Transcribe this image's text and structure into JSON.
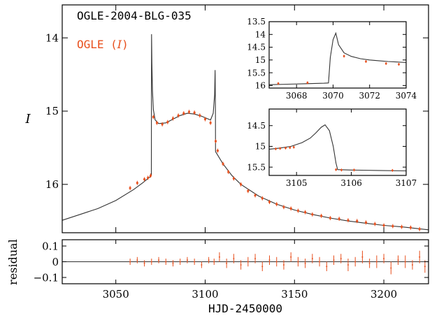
{
  "chart_data": [
    {
      "type": "scatter",
      "panel": "main",
      "event_label": "OGLE-2004-BLG-035",
      "legend_label": "OGLE (",
      "legend_band": "I",
      "legend_close": ")",
      "ylabel": "I",
      "xlabel": "HJD-2450000",
      "xlim": [
        3020,
        3225
      ],
      "ylim": [
        16.66,
        13.55
      ],
      "y_inverted": true,
      "xticks": [
        3050,
        3100,
        3150,
        3200
      ],
      "yticks": [
        14,
        15,
        16
      ],
      "series": [
        {
          "name": "OGLE (I)",
          "color": "#e8501e",
          "x": [
            3058,
            3062,
            3066,
            3068,
            3069.5,
            3071,
            3073,
            3076,
            3079,
            3082,
            3085,
            3088,
            3091,
            3094,
            3097,
            3100,
            3103,
            3105.9,
            3107,
            3110,
            3113,
            3116,
            3120,
            3124,
            3128,
            3132,
            3136,
            3140,
            3144,
            3148,
            3152,
            3156,
            3160,
            3165,
            3170,
            3175,
            3180,
            3185,
            3190,
            3195,
            3200,
            3205,
            3210,
            3215,
            3220
          ],
          "y": [
            16.05,
            15.98,
            15.93,
            15.91,
            15.88,
            15.08,
            15.16,
            15.18,
            15.15,
            15.1,
            15.06,
            15.03,
            15.01,
            15.02,
            15.06,
            15.11,
            15.16,
            15.41,
            15.54,
            15.72,
            15.83,
            15.92,
            16.0,
            16.09,
            16.15,
            16.19,
            16.24,
            16.27,
            16.31,
            16.33,
            16.36,
            16.38,
            16.41,
            16.43,
            16.46,
            16.47,
            16.49,
            16.5,
            16.52,
            16.54,
            16.56,
            16.57,
            16.58,
            16.59,
            16.61
          ]
        }
      ],
      "model": {
        "name": "model",
        "color": "#333333",
        "x": [
          3020,
          3030,
          3040,
          3050,
          3060,
          3065,
          3068,
          3069.5,
          3069.9,
          3070.0,
          3070.2,
          3070.5,
          3071,
          3072,
          3074,
          3078,
          3082,
          3086,
          3090,
          3094,
          3098,
          3101,
          3103,
          3104.5,
          3105.3,
          3105.55,
          3105.75,
          3105.78,
          3106,
          3107,
          3110,
          3115,
          3120,
          3130,
          3140,
          3150,
          3160,
          3170,
          3180,
          3190,
          3200,
          3210,
          3225
        ],
        "y": [
          16.49,
          16.41,
          16.33,
          16.22,
          16.07,
          15.98,
          15.92,
          15.89,
          15.88,
          13.95,
          14.35,
          14.72,
          14.98,
          15.12,
          15.17,
          15.16,
          15.11,
          15.06,
          15.03,
          15.04,
          15.07,
          15.1,
          15.12,
          15.03,
          14.78,
          14.44,
          15.0,
          15.55,
          15.56,
          15.6,
          15.72,
          15.88,
          16.0,
          16.16,
          16.27,
          16.35,
          16.41,
          16.46,
          16.5,
          16.53,
          16.56,
          16.58,
          16.62
        ]
      }
    },
    {
      "type": "scatter",
      "panel": "residual",
      "ylabel": "residual",
      "xlabel": "HJD-2450000",
      "xlim": [
        3020,
        3225
      ],
      "ylim": [
        -0.14,
        0.14
      ],
      "xticks": [
        3050,
        3100,
        3150,
        3200
      ],
      "yticks": [
        0.1,
        0,
        -0.1
      ],
      "ytick_labels": [
        "0.1",
        "0",
        "−0.1"
      ],
      "series": [
        {
          "name": "OGLE (I) residual",
          "color": "#e8501e",
          "x": [
            3058,
            3062,
            3066,
            3070,
            3074,
            3078,
            3082,
            3086,
            3090,
            3094,
            3098,
            3102,
            3105,
            3108,
            3112,
            3116,
            3120,
            3124,
            3128,
            3132,
            3136,
            3140,
            3144,
            3148,
            3152,
            3156,
            3160,
            3164,
            3168,
            3172,
            3176,
            3180,
            3184,
            3188,
            3192,
            3196,
            3200,
            3204,
            3208,
            3212,
            3216,
            3220,
            3223
          ],
          "y": [
            0.0,
            0.01,
            -0.01,
            0.0,
            0.01,
            0.0,
            -0.01,
            0.0,
            0.01,
            0.0,
            -0.02,
            0.01,
            0.0,
            0.03,
            -0.01,
            0.02,
            -0.02,
            0.0,
            0.02,
            -0.03,
            0.01,
            0.0,
            -0.02,
            0.03,
            0.0,
            -0.01,
            0.02,
            0.0,
            -0.03,
            0.01,
            0.02,
            -0.02,
            0.0,
            0.03,
            -0.01,
            0.0,
            0.02,
            -0.04,
            0.01,
            0.0,
            -0.02,
            0.03,
            -0.03
          ],
          "err": [
            0.02,
            0.02,
            0.02,
            0.02,
            0.02,
            0.02,
            0.02,
            0.02,
            0.02,
            0.02,
            0.02,
            0.02,
            0.02,
            0.03,
            0.03,
            0.03,
            0.03,
            0.03,
            0.03,
            0.03,
            0.03,
            0.03,
            0.03,
            0.03,
            0.03,
            0.03,
            0.03,
            0.03,
            0.03,
            0.03,
            0.03,
            0.04,
            0.03,
            0.04,
            0.03,
            0.04,
            0.03,
            0.04,
            0.03,
            0.04,
            0.03,
            0.04,
            0.04
          ]
        }
      ]
    },
    {
      "type": "scatter",
      "panel": "inset-1",
      "xlim": [
        3066.5,
        3074
      ],
      "ylim": [
        16.1,
        13.5
      ],
      "y_inverted": true,
      "xticks": [
        3068,
        3070,
        3072,
        3074
      ],
      "yticks": [
        13.5,
        14,
        14.5,
        15,
        15.5,
        16
      ],
      "series": [
        {
          "name": "OGLE (I)",
          "color": "#e8501e",
          "x": [
            3067.0,
            3068.6,
            3070.6,
            3071.8,
            3072.9,
            3073.6
          ],
          "y": [
            15.92,
            15.89,
            14.85,
            15.06,
            15.14,
            15.17
          ]
        }
      ],
      "model": {
        "name": "model",
        "color": "#333333",
        "x": [
          3066.5,
          3067.5,
          3068.5,
          3069.5,
          3069.75,
          3069.85,
          3070.0,
          3070.15,
          3070.3,
          3070.6,
          3071.0,
          3071.5,
          3072.0,
          3072.5,
          3073.0,
          3073.5,
          3074.0
        ],
        "y": [
          15.97,
          15.95,
          15.93,
          15.91,
          15.9,
          14.9,
          14.2,
          13.95,
          14.4,
          14.72,
          14.86,
          14.95,
          15.0,
          15.03,
          15.06,
          15.08,
          15.1
        ]
      }
    },
    {
      "type": "scatter",
      "panel": "inset-2",
      "xlim": [
        3104.5,
        3107
      ],
      "ylim": [
        15.7,
        14.1
      ],
      "y_inverted": true,
      "xticks": [
        3105,
        3106,
        3107
      ],
      "yticks": [
        14.5,
        15,
        15.5
      ],
      "series": [
        {
          "name": "OGLE (I)",
          "color": "#e8501e",
          "x": [
            3104.62,
            3104.7,
            3104.8,
            3104.88,
            3104.95,
            3105.72,
            3105.82,
            3106.05,
            3106.75
          ],
          "y": [
            15.06,
            15.05,
            15.04,
            15.03,
            15.02,
            15.56,
            15.57,
            15.57,
            15.58
          ]
        }
      ],
      "model": {
        "name": "model",
        "color": "#333333",
        "x": [
          3104.5,
          3104.7,
          3104.9,
          3105.1,
          3105.25,
          3105.35,
          3105.45,
          3105.52,
          3105.6,
          3105.67,
          3105.72,
          3105.75,
          3106.0,
          3106.5,
          3107.0
        ],
        "y": [
          15.07,
          15.04,
          15.0,
          14.91,
          14.8,
          14.68,
          14.54,
          14.48,
          14.62,
          15.0,
          15.4,
          15.56,
          15.57,
          15.58,
          15.59
        ]
      }
    }
  ]
}
